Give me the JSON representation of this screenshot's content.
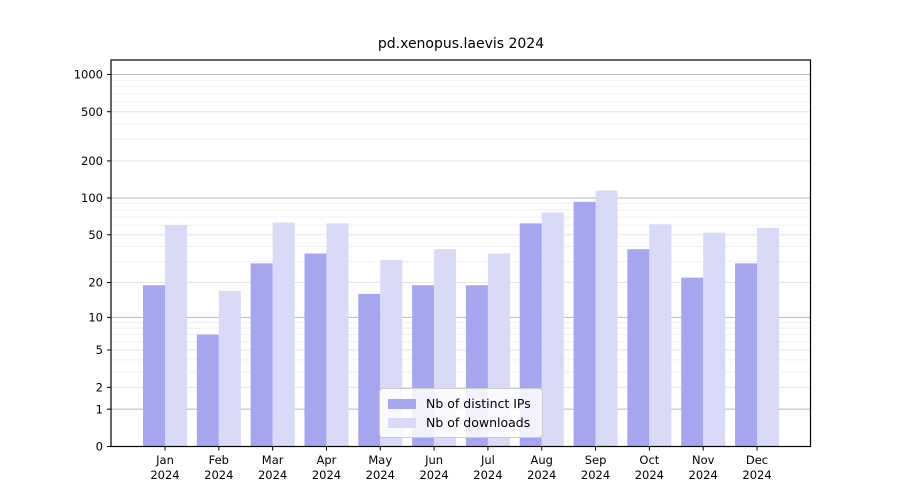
{
  "title": "pd.xenopus.laevis 2024",
  "chart_data": {
    "type": "bar",
    "title": "pd.xenopus.laevis 2024",
    "yscale": "log1p",
    "grid": true,
    "legend_position": "lower center",
    "ylim": [
      0,
      1300
    ],
    "y_ticks": [
      0,
      1,
      2,
      5,
      10,
      20,
      50,
      100,
      200,
      500,
      1000
    ],
    "categories": [
      "Jan 2024",
      "Feb 2024",
      "Mar 2024",
      "Apr 2024",
      "May 2024",
      "Jun 2024",
      "Jul 2024",
      "Aug 2024",
      "Sep 2024",
      "Oct 2024",
      "Nov 2024",
      "Dec 2024"
    ],
    "series": [
      {
        "name": "Nb of distinct IPs",
        "color": "#a6a6f0",
        "values": [
          19,
          7,
          29,
          35,
          16,
          19,
          19,
          62,
          93,
          38,
          22,
          29
        ]
      },
      {
        "name": "Nb of downloads",
        "color": "#d9d9f8",
        "values": [
          60,
          17,
          63,
          62,
          31,
          38,
          35,
          76,
          115,
          61,
          52,
          57
        ]
      }
    ]
  },
  "legend": {
    "items": [
      {
        "label": "Nb of distinct IPs",
        "color": "#a6a6f0"
      },
      {
        "label": "Nb of downloads",
        "color": "#d9d9f8"
      }
    ]
  }
}
